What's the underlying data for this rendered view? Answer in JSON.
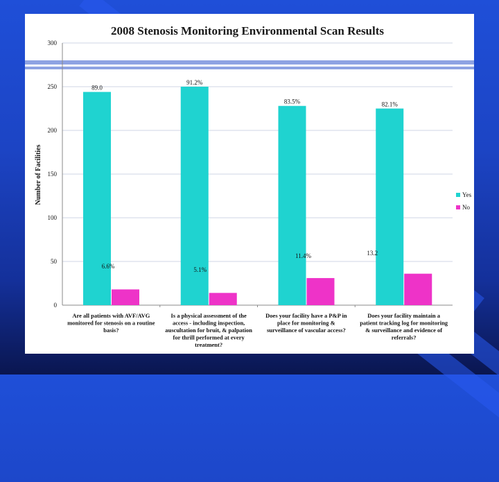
{
  "slide_number": "14",
  "colors": {
    "yes": "#1fd3d0",
    "no": "#ee33c8",
    "plot_bg": "#ffffff",
    "grid": "#cfd6e6",
    "text": "#111111"
  },
  "chart_data": {
    "type": "bar",
    "title": "2008 Stenosis Monitoring Environmental Scan Results",
    "xlabel": "",
    "ylabel": "Number of Facilities",
    "ylim": [
      0,
      300
    ],
    "yticks": [
      0,
      50,
      100,
      150,
      200,
      250,
      300
    ],
    "grid": true,
    "legend_position": "right",
    "categories": [
      "Are all patients with AVF/AVG monitored for stenosis on a routine basis?",
      "Is a physical assessment of the access - including inspection, auscultation for bruit, & palpation for thrill performed at every treatment?",
      "Does your facility have a P&P in place for monitoring & surveillance of vascular access?",
      "Does your facility maintain a patient tracking log for monitoring & surveillance and evidence of referrals?"
    ],
    "category_lines": [
      [
        "Are all patients with AVF/AVG",
        "monitored for stenosis on a routine",
        "basis?"
      ],
      [
        "Is a physical assessment of the",
        "access - including inspection,",
        "auscultation for bruit, & palpation",
        "for thrill performed at every",
        "treatment?"
      ],
      [
        "Does your facility have a P&P in",
        "place for monitoring &",
        "surveillance of vascular access?"
      ],
      [
        "Does your facility maintain a",
        "patient tracking log for monitoring",
        "& surveillance and evidence of",
        "referrals?"
      ]
    ],
    "series": [
      {
        "name": "Yes",
        "values": [
          244,
          250,
          228,
          225
        ],
        "labels": [
          "89.0",
          "91.2%",
          "83.5%",
          "82.1%"
        ]
      },
      {
        "name": "No",
        "values": [
          18,
          14,
          31,
          36
        ],
        "labels": [
          "6.6%",
          "5.1%",
          "11.4%",
          "13.2"
        ]
      }
    ]
  }
}
